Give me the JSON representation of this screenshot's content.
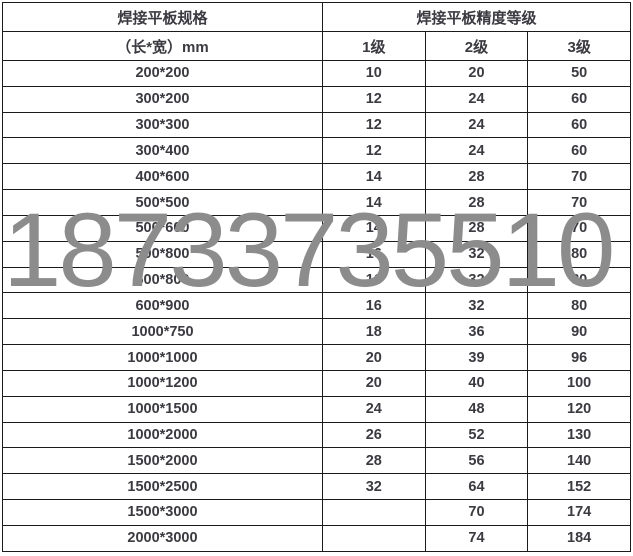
{
  "watermark": {
    "text": "18733735510",
    "color": "#8c8c8c"
  },
  "table": {
    "col1_header": "焊接平板规格",
    "col1_subheader": "（长*宽）mm",
    "grade_header": "焊接平板精度等级",
    "grade_levels": [
      "1级",
      "2级",
      "3级"
    ],
    "rows": [
      [
        "200*200",
        "10",
        "20",
        "50"
      ],
      [
        "300*200",
        "12",
        "24",
        "60"
      ],
      [
        "300*300",
        "12",
        "24",
        "60"
      ],
      [
        "300*400",
        "12",
        "24",
        "60"
      ],
      [
        "400*600",
        "14",
        "28",
        "70"
      ],
      [
        "500*500",
        "14",
        "28",
        "70"
      ],
      [
        "500*600",
        "14",
        "28",
        "70"
      ],
      [
        "500*800",
        "16",
        "32",
        "80"
      ],
      [
        "600*800",
        "16",
        "32",
        "80"
      ],
      [
        "600*900",
        "16",
        "32",
        "80"
      ],
      [
        "1000*750",
        "18",
        "36",
        "90"
      ],
      [
        "1000*1000",
        "20",
        "39",
        "96"
      ],
      [
        "1000*1200",
        "20",
        "40",
        "100"
      ],
      [
        "1000*1500",
        "24",
        "48",
        "120"
      ],
      [
        "1000*2000",
        "26",
        "52",
        "130"
      ],
      [
        "1500*2000",
        "28",
        "56",
        "140"
      ],
      [
        "1500*2500",
        "32",
        "64",
        "152"
      ],
      [
        "1500*3000",
        "",
        "70",
        "174"
      ],
      [
        "2000*3000",
        "",
        "74",
        "184"
      ]
    ]
  },
  "colors": {
    "border": "#1b1b1b",
    "text": "#3a3a40",
    "background": "#ffffff"
  }
}
